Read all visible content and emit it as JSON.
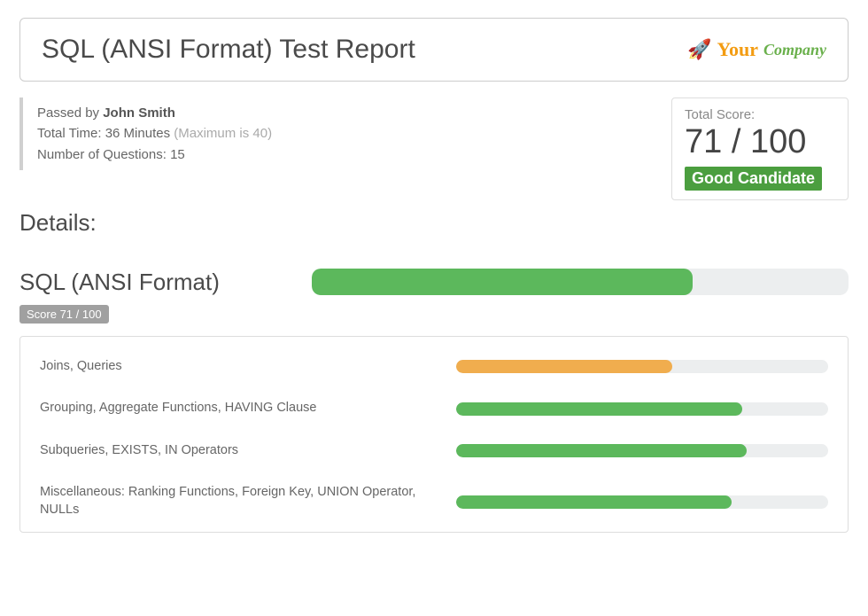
{
  "colors": {
    "green": "#4b9e3f",
    "orange": "#f5a623",
    "bar_track": "#eceeef",
    "badge_bg": "#4b9e3f",
    "chip_bg": "#a0a0a0",
    "text_primary": "#4a4a4a",
    "text_muted": "#aaaaaa"
  },
  "header": {
    "title": "SQL (ANSI Format) Test Report",
    "logo_your": "Your",
    "logo_company": "Company"
  },
  "summary": {
    "passed_by_prefix": "Passed by ",
    "candidate_name": "John Smith",
    "total_time_label": "Total Time: ",
    "total_time_value": "36 Minutes",
    "max_time_text": " (Maximum is 40)",
    "questions_label": "Number of Questions: ",
    "questions_value": "15"
  },
  "score_box": {
    "label": "Total Score:",
    "value": "71 / 100",
    "badge_text": "Good Candidate",
    "badge_bg": "#4b9e3f"
  },
  "details_heading": "Details:",
  "overall": {
    "title": "SQL (ANSI Format)",
    "percent": 71,
    "bar_color": "#5cb85c",
    "chip_text": "Score 71 / 100"
  },
  "topics": [
    {
      "label": "Joins, Queries",
      "percent": 58,
      "color": "#f0ad4e"
    },
    {
      "label": "Grouping, Aggregate Functions, HAVING Clause",
      "percent": 77,
      "color": "#5cb85c"
    },
    {
      "label": "Subqueries, EXISTS, IN Operators",
      "percent": 78,
      "color": "#5cb85c"
    },
    {
      "label": "Miscellaneous: Ranking Functions, Foreign Key, UNION Operator, NULLs",
      "percent": 74,
      "color": "#5cb85c"
    }
  ]
}
